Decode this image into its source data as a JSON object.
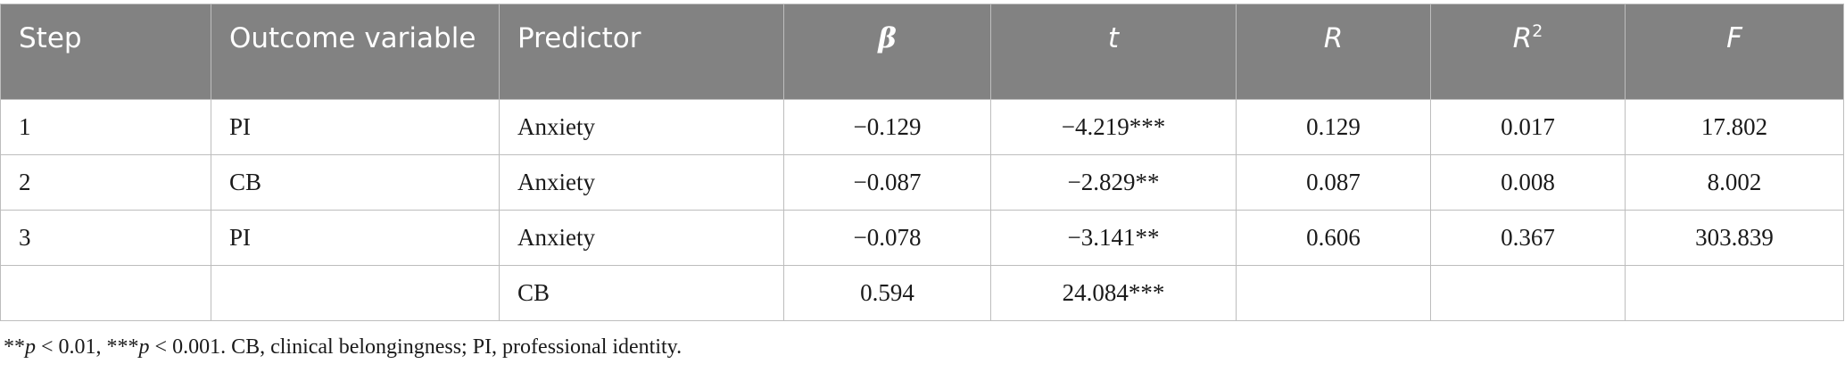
{
  "table": {
    "headers": {
      "step": "Step",
      "outcome": "Outcome variable",
      "predictor": "Predictor",
      "beta": "β",
      "t": "t",
      "r": "R",
      "r2_base": "R",
      "r2_sup": "2",
      "f": "F"
    },
    "rows": [
      {
        "step": "1",
        "outcome": "PI",
        "predictor": "Anxiety",
        "beta": "−0.129",
        "t": "−4.219***",
        "r": "0.129",
        "r2": "0.017",
        "f": "17.802"
      },
      {
        "step": "2",
        "outcome": "CB",
        "predictor": "Anxiety",
        "beta": "−0.087",
        "t": "−2.829**",
        "r": "0.087",
        "r2": "0.008",
        "f": "8.002"
      },
      {
        "step": "3",
        "outcome": "PI",
        "predictor": "Anxiety",
        "beta": "−0.078",
        "t": "−3.141**",
        "r": "0.606",
        "r2": "0.367",
        "f": "303.839"
      },
      {
        "step": "",
        "outcome": "",
        "predictor": "CB",
        "beta": "0.594",
        "t": "24.084***",
        "r": "",
        "r2": "",
        "f": ""
      }
    ]
  },
  "note": {
    "star2": "**",
    "p": "p",
    "part1": " < 0.01, ",
    "star3": "***",
    "part2": " < 0.001. CB, clinical belongingness; PI, professional identity."
  }
}
